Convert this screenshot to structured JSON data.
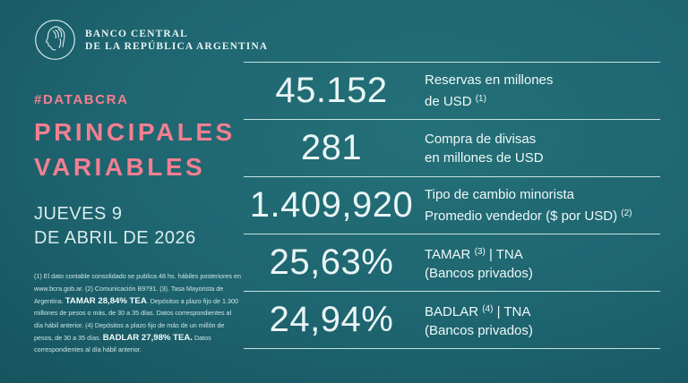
{
  "colors": {
    "accent_pink": "#f27f90",
    "background_teal": "#1e6570",
    "divider_light": "#daf0f1",
    "text_light": "#eaf6f6"
  },
  "brand": {
    "line1": "BANCO CENTRAL",
    "line2": "DE LA REPÚBLICA ARGENTINA",
    "coin_icon": "liberty-profile-coin"
  },
  "left": {
    "hashtag": "#DATABCRA",
    "title_line1": "PRINCIPALES",
    "title_line2": "VARIABLES",
    "date_line1": "JUEVES 9",
    "date_line2": "DE ABRIL DE 2026",
    "footnote_segments": [
      {
        "text": "(1) El dato contable consolidado se publica 48 hs. hábiles posteriores en www.bcra.gob.ar. (2) Comunicación B9791. (3). Tasa Mayorista de Argentina. ",
        "bold": false
      },
      {
        "text": "TAMAR 28,84% TEA",
        "bold": true
      },
      {
        "text": ". Depósitos a plazo fijo de 1.300 millones de pesos o más, de 30 a 35 días. Datos correspondientes al día hábil anterior. (4) Depósitos a plazo fijo de más de un millón de pesos, de 30 a 35 días. ",
        "bold": false
      },
      {
        "text": "BADLAR 27,98% TEA.",
        "bold": true
      },
      {
        "text": " Datos correspondientes al día hábil anterior.",
        "bold": false
      }
    ]
  },
  "table": {
    "rows": [
      {
        "value": "45.152",
        "lines": [
          [
            {
              "t": "Reservas en millones"
            }
          ],
          [
            {
              "t": "de USD "
            },
            {
              "s": "(1)"
            }
          ]
        ]
      },
      {
        "value": "281",
        "lines": [
          [
            {
              "t": "Compra de divisas"
            }
          ],
          [
            {
              "t": "en millones de USD"
            }
          ]
        ]
      },
      {
        "value": "1.409,920",
        "lines": [
          [
            {
              "t": "Tipo de cambio minorista"
            }
          ],
          [
            {
              "t": "Promedio vendedor ($ por USD) "
            },
            {
              "s": "(2)"
            }
          ]
        ]
      },
      {
        "value": "25,63%",
        "lines": [
          [
            {
              "t": "TAMAR "
            },
            {
              "s": "(3)"
            },
            {
              "t": " | TNA"
            }
          ],
          [
            {
              "t": "(Bancos privados)"
            }
          ]
        ]
      },
      {
        "value": "24,94%",
        "lines": [
          [
            {
              "t": "BADLAR "
            },
            {
              "s": "(4)"
            },
            {
              "t": " | TNA"
            }
          ],
          [
            {
              "t": "(Bancos privados)"
            }
          ]
        ]
      }
    ]
  }
}
